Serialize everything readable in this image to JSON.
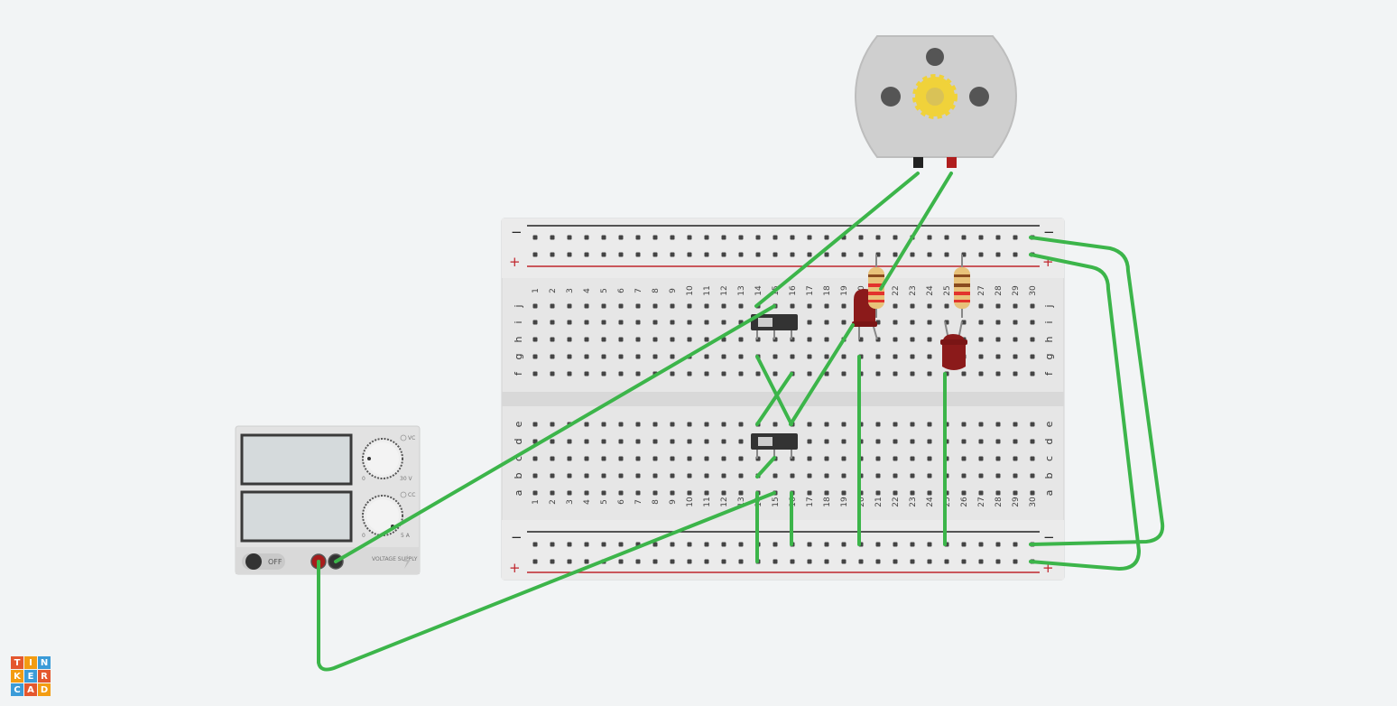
{
  "app": {
    "logo_letters": [
      "T",
      "I",
      "N",
      "K",
      "E",
      "R",
      "C",
      "A",
      "D"
    ]
  },
  "breadboard": {
    "columns": [
      "1",
      "2",
      "3",
      "4",
      "5",
      "6",
      "7",
      "8",
      "9",
      "10",
      "11",
      "12",
      "13",
      "14",
      "15",
      "16",
      "17",
      "18",
      "19",
      "20",
      "21",
      "22",
      "23",
      "24",
      "25",
      "26",
      "27",
      "28",
      "29",
      "30"
    ],
    "rows_top": [
      "j",
      "i",
      "h",
      "g",
      "f"
    ],
    "rows_bottom": [
      "e",
      "d",
      "c",
      "b",
      "a"
    ],
    "rail_minus": "−",
    "rail_plus": "+"
  },
  "power_supply": {
    "switch_label": "OFF",
    "knob1_min": "0",
    "knob1_max": "30 V",
    "knob1_tag": "VC",
    "knob2_min": "0",
    "knob2_max": "5 A",
    "knob2_tag": "CC",
    "brand": "VOLTAGE SUPPLY"
  },
  "colors": {
    "wire": "#3cb54a",
    "breadboard": "#e6e6e6",
    "led": "#8b1a1a",
    "motor": "#cfcfcf",
    "gear": "#f0d23a"
  },
  "components": {
    "motor": "dc-motor",
    "switches": 2,
    "leds": 2,
    "resistors": 2
  }
}
